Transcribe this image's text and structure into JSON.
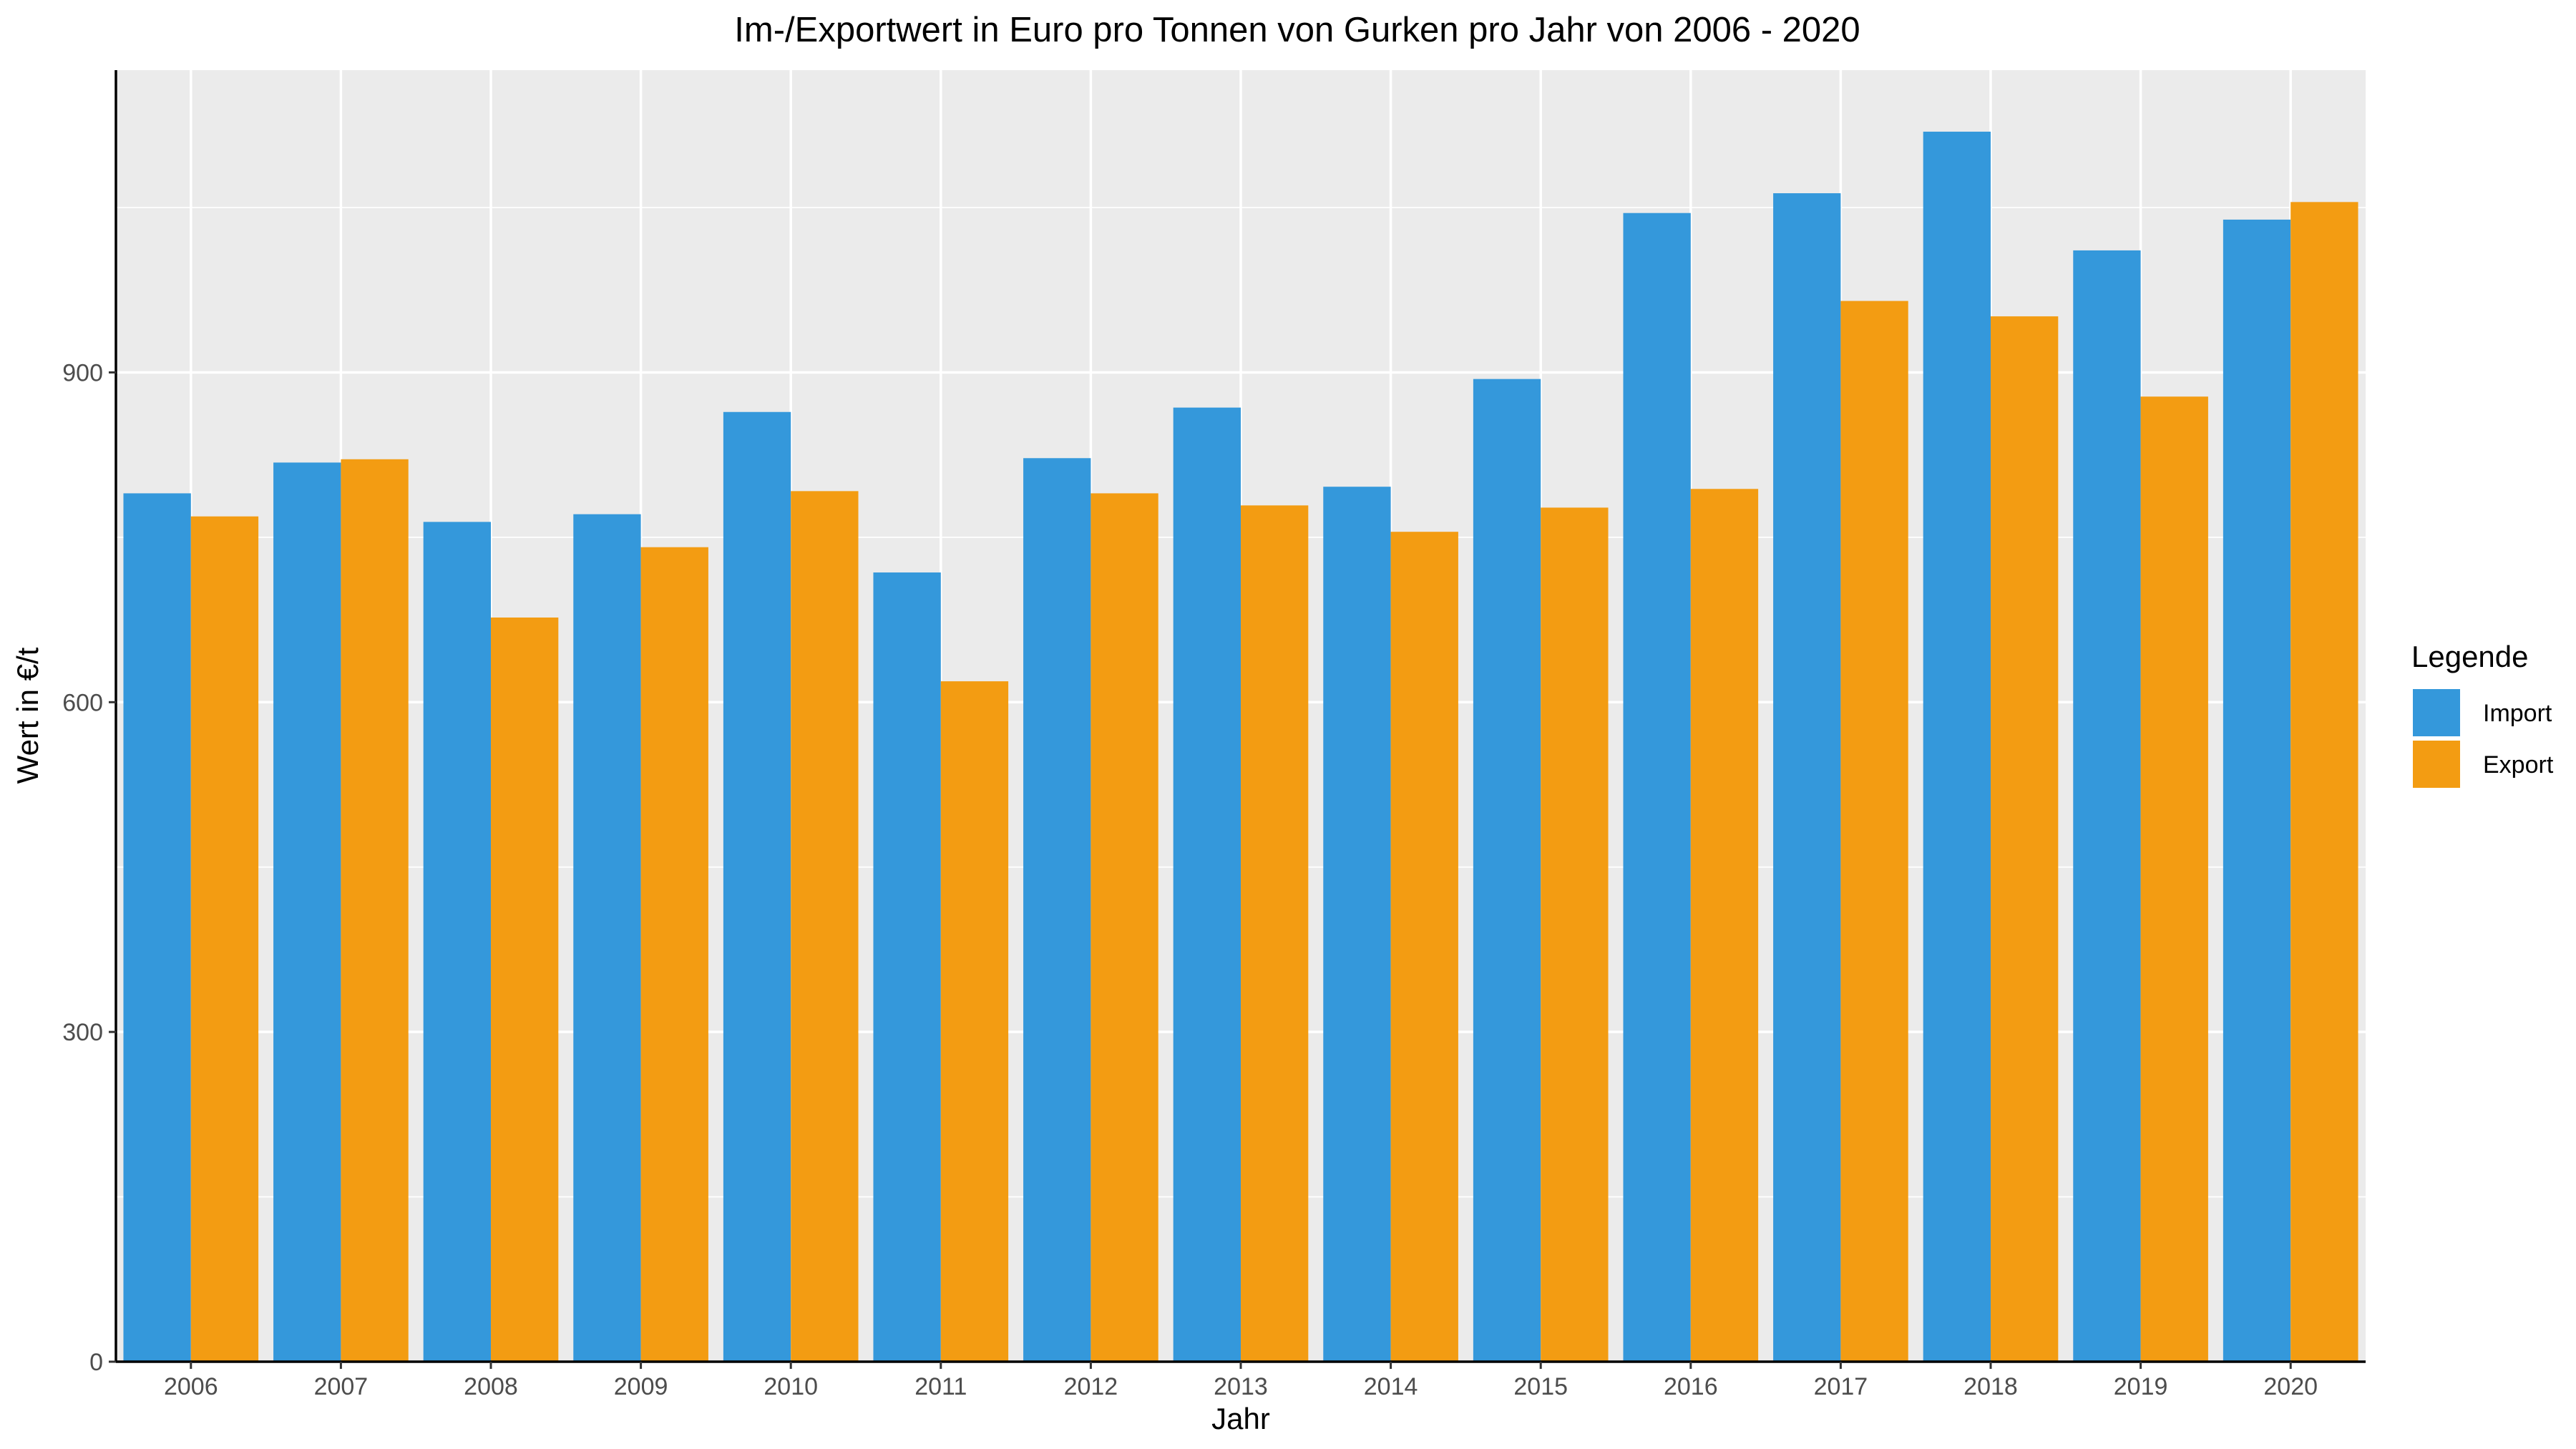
{
  "chart_data": {
    "type": "bar",
    "title": "Im-/Exportwert in Euro pro Tonnen von Gurken pro Jahr von 2006 - 2020",
    "xlabel": "Jahr",
    "ylabel": "Wert in €/t",
    "categories": [
      "2006",
      "2007",
      "2008",
      "2009",
      "2010",
      "2011",
      "2012",
      "2013",
      "2014",
      "2015",
      "2016",
      "2017",
      "2018",
      "2019",
      "2020"
    ],
    "series": [
      {
        "name": "Import",
        "color": "#3498db",
        "values": [
          790,
          818,
          764,
          771,
          864,
          718,
          822,
          868,
          796,
          894,
          1045,
          1063,
          1119,
          1011,
          1039
        ]
      },
      {
        "name": "Export",
        "color": "#f39c12",
        "values": [
          769,
          821,
          677,
          741,
          792,
          619,
          790,
          779,
          755,
          777,
          794,
          965,
          951,
          878,
          1055
        ]
      }
    ],
    "ylim": [
      0,
      1175
    ],
    "yticks": [
      0,
      300,
      600,
      900
    ],
    "ytick_labels": [
      "0",
      "300",
      "600",
      "900"
    ],
    "grid": true,
    "legend": {
      "title": "Legende",
      "position": "right"
    }
  }
}
